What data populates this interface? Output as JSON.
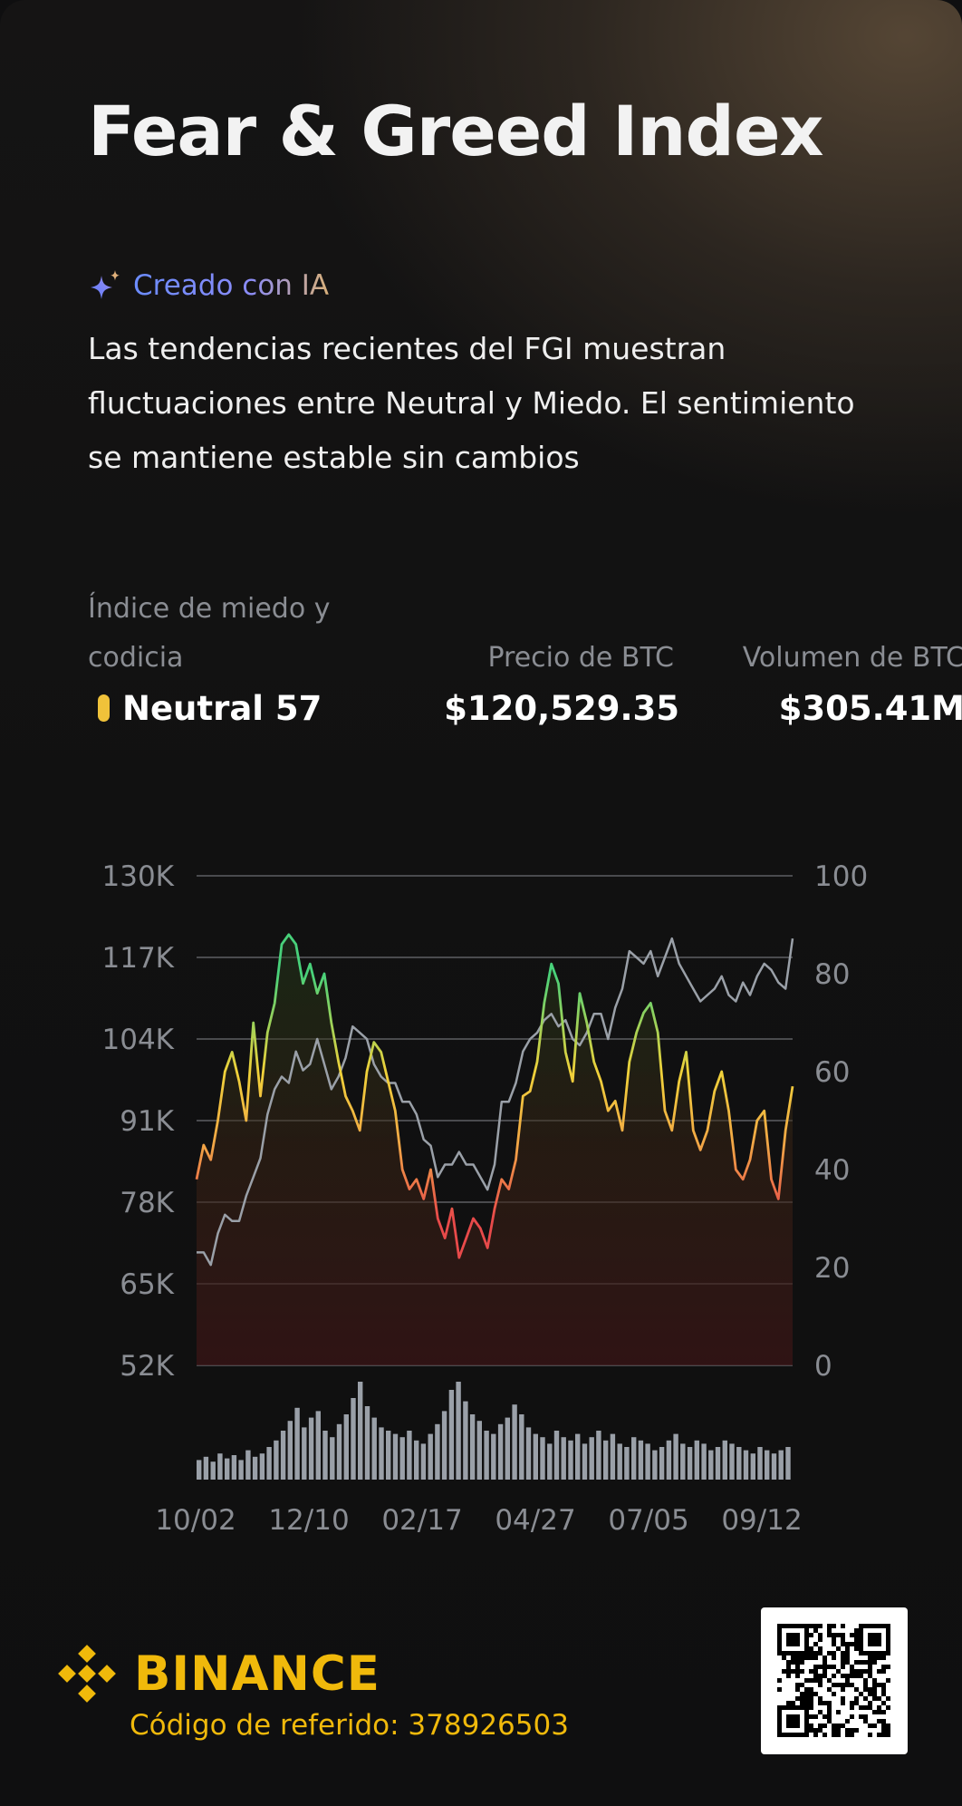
{
  "title": "Fear & Greed Index",
  "ai_badge": "Creado con IA",
  "summary": "Las tendencias recientes del FGI muestran fluctuaciones entre Neutral y Miedo. El sentimiento se mantiene estable sin cambios",
  "stats": {
    "fgi_label": "Índice de miedo y codicia",
    "btc_label": "Precio de BTC",
    "volume_label": "Volumen de BTC",
    "fgi_value": "Neutral 57",
    "btc_value": "$120,529.35",
    "volume_value": "$305.41M"
  },
  "colors": {
    "accent": "#f0b90b",
    "fear": "#e84a4a",
    "neutral": "#f0c23a",
    "greed": "#48d17a",
    "price_line": "#9aa0a8",
    "volume_bars": "#9aa0a8"
  },
  "chart_data": {
    "type": "line",
    "y_left_ticks": [
      "130K",
      "117K",
      "104K",
      "91K",
      "78K",
      "65K",
      "52K"
    ],
    "y_left_range": [
      52000,
      130000
    ],
    "y_right_ticks": [
      "100",
      "80",
      "60",
      "40",
      "20",
      "0"
    ],
    "y_right_range": [
      0,
      100
    ],
    "x_ticks": [
      "10/02",
      "12/10",
      "02/17",
      "04/27",
      "07/05",
      "09/12"
    ],
    "grid": true,
    "series": [
      {
        "axis": "right",
        "values": [
          38,
          45,
          42,
          50,
          60,
          64,
          58,
          50,
          70,
          55,
          68,
          74,
          86,
          88,
          86,
          78,
          82,
          76,
          80,
          70,
          62,
          55,
          52,
          48,
          60,
          66,
          64,
          58,
          52,
          40,
          36,
          38,
          34,
          40,
          30,
          26,
          32,
          22,
          26,
          30,
          28,
          24,
          32,
          38,
          36,
          42,
          55,
          56,
          62,
          74,
          82,
          78,
          64,
          58,
          76,
          70,
          62,
          58,
          52,
          54,
          48,
          62,
          68,
          72,
          74,
          68,
          52,
          48,
          58,
          64,
          48,
          44,
          48,
          56,
          60,
          52,
          40,
          38,
          42,
          50,
          52,
          38,
          34,
          48,
          57
        ]
      },
      {
        "axis": "left",
        "values": [
          70000,
          70000,
          68000,
          73000,
          76000,
          75000,
          75000,
          79000,
          82000,
          85000,
          92000,
          96000,
          98000,
          97000,
          102000,
          99000,
          100000,
          104000,
          100000,
          96000,
          98000,
          101000,
          106000,
          105000,
          104000,
          100000,
          98000,
          97000,
          97000,
          94000,
          94000,
          92000,
          88000,
          87000,
          82000,
          84000,
          84000,
          86000,
          84000,
          84000,
          82000,
          80000,
          84000,
          94000,
          94000,
          97000,
          102000,
          104000,
          105000,
          107000,
          108000,
          106000,
          107000,
          104000,
          103000,
          105000,
          108000,
          108000,
          104000,
          109000,
          112000,
          118000,
          117000,
          116000,
          118000,
          114000,
          117000,
          120000,
          116000,
          114000,
          112000,
          110000,
          111000,
          112000,
          114000,
          111000,
          110000,
          113000,
          111000,
          114000,
          116000,
          115000,
          113000,
          112000,
          120000
        ]
      }
    ],
    "volume": [
      12,
      14,
      11,
      16,
      13,
      15,
      12,
      18,
      14,
      16,
      20,
      24,
      30,
      36,
      44,
      32,
      38,
      42,
      30,
      26,
      34,
      40,
      50,
      60,
      45,
      38,
      32,
      30,
      28,
      26,
      30,
      24,
      22,
      28,
      34,
      42,
      55,
      60,
      48,
      40,
      36,
      30,
      28,
      34,
      38,
      46,
      40,
      32,
      28,
      26,
      22,
      30,
      26,
      24,
      28,
      22,
      26,
      30,
      24,
      28,
      22,
      20,
      26,
      24,
      22,
      18,
      20,
      24,
      28,
      22,
      20,
      24,
      22,
      18,
      20,
      24,
      22,
      20,
      18,
      16,
      20,
      18,
      16,
      18,
      20
    ]
  },
  "footer": {
    "brand": "BINANCE",
    "referral": "Código de referido: 378926503"
  }
}
